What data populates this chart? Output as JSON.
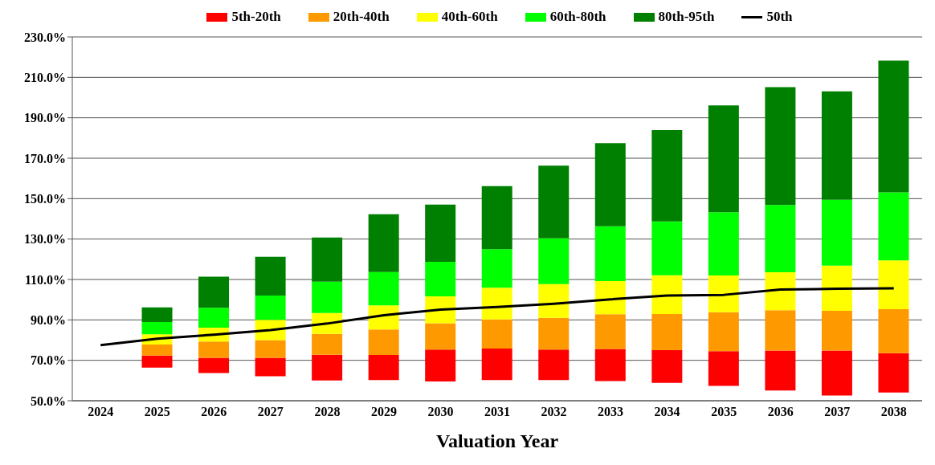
{
  "chart_data": {
    "type": "bar",
    "xlabel": "Valuation Year",
    "categories": [
      "2024",
      "2025",
      "2026",
      "2027",
      "2028",
      "2029",
      "2030",
      "2031",
      "2032",
      "2033",
      "2034",
      "2035",
      "2036",
      "2037",
      "2038"
    ],
    "series": [
      {
        "name": "5th-20th",
        "color": "#ff0000",
        "base": [
          null,
          66.4,
          63.7,
          62.1,
          60.0,
          60.2,
          59.5,
          60.2,
          60.2,
          59.7,
          58.8,
          57.4,
          55.1,
          52.6,
          54.1
        ],
        "values": [
          null,
          6.0,
          7.6,
          9.2,
          12.7,
          12.4,
          15.8,
          15.6,
          15.1,
          15.9,
          16.2,
          17.1,
          19.7,
          22.2,
          19.4
        ]
      },
      {
        "name": "20th-40th",
        "color": "#ff9900",
        "base": [
          null,
          72.4,
          71.3,
          71.3,
          72.7,
          72.6,
          75.3,
          75.8,
          75.3,
          75.6,
          75.0,
          74.5,
          74.8,
          74.8,
          73.5
        ],
        "values": [
          null,
          5.4,
          8.0,
          8.7,
          10.4,
          12.7,
          13.0,
          14.4,
          15.7,
          17.2,
          17.9,
          19.3,
          20.0,
          19.7,
          21.8
        ]
      },
      {
        "name": "40th-60th",
        "color": "#ffff00",
        "base": [
          null,
          77.8,
          79.3,
          80.0,
          83.1,
          85.3,
          88.3,
          90.2,
          91.0,
          92.8,
          92.9,
          93.8,
          94.8,
          94.5,
          95.3
        ],
        "values": [
          null,
          5.1,
          6.9,
          10.0,
          10.3,
          11.9,
          13.4,
          15.7,
          16.7,
          16.4,
          19.2,
          18.2,
          18.8,
          22.4,
          24.1
        ]
      },
      {
        "name": "60th-80th",
        "color": "#00ff00",
        "base": [
          null,
          82.9,
          86.2,
          90.0,
          93.4,
          97.2,
          101.7,
          105.9,
          107.7,
          109.2,
          112.1,
          112.0,
          113.6,
          116.9,
          119.4
        ],
        "values": [
          null,
          6.0,
          9.8,
          12.1,
          15.5,
          16.5,
          17.0,
          19.1,
          22.7,
          27.1,
          26.6,
          31.3,
          33.3,
          32.5,
          33.7
        ]
      },
      {
        "name": "80th-95th",
        "color": "#008000",
        "base": [
          null,
          88.9,
          96.0,
          102.1,
          108.9,
          113.7,
          118.7,
          125.0,
          130.4,
          136.3,
          138.7,
          143.3,
          146.9,
          149.4,
          153.1
        ],
        "values": [
          null,
          7.3,
          15.4,
          19.1,
          21.9,
          28.6,
          28.4,
          31.2,
          35.9,
          41.2,
          45.2,
          52.8,
          58.3,
          53.7,
          65.2
        ]
      },
      {
        "name": "50th",
        "type": "line",
        "color": "#000000",
        "values": [
          77.5,
          80.7,
          82.7,
          85.0,
          88.2,
          92.3,
          95.1,
          96.4,
          98.0,
          100.2,
          102.1,
          102.4,
          105.0,
          105.4,
          105.6
        ]
      }
    ],
    "ylim": [
      50,
      230
    ],
    "yticks": [
      {
        "value": 50,
        "label": "50.0%"
      },
      {
        "value": 70,
        "label": "70.0%"
      },
      {
        "value": 90,
        "label": "90.0%"
      },
      {
        "value": 110,
        "label": "110.0%"
      },
      {
        "value": 130,
        "label": "130.0%"
      },
      {
        "value": 150,
        "label": "150.0%"
      },
      {
        "value": 170,
        "label": "170.0%"
      },
      {
        "value": 190,
        "label": "190.0%"
      },
      {
        "value": 210,
        "label": "210.0%"
      },
      {
        "value": 230,
        "label": "230.0%"
      }
    ],
    "grid": "y",
    "legend": "top",
    "marker": "none",
    "line_style": "solid"
  }
}
